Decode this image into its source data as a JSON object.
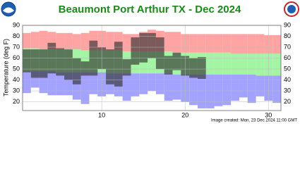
{
  "chart_data": {
    "type": "range_band",
    "title": "Beaumont Port Arthur TX - Dec 2024",
    "y_label": "Temperature (deg F)",
    "footer": "Image created: Mon, 23 Dec 2024 11:00 GMT",
    "x": [
      1,
      2,
      3,
      4,
      5,
      6,
      7,
      8,
      9,
      10,
      11,
      12,
      13,
      14,
      15,
      16,
      17,
      18,
      19,
      20,
      21,
      22,
      23,
      24,
      25,
      26,
      27,
      28,
      29,
      30,
      31
    ],
    "xlim": [
      0.5,
      31.5
    ],
    "xticks": [
      10,
      20,
      30
    ],
    "ylim": [
      12,
      90
    ],
    "yticks": [
      20,
      30,
      40,
      50,
      60,
      70,
      80,
      90
    ],
    "grid": true,
    "record_high": {
      "color": "#ffa3a3",
      "values": [
        83,
        84,
        85,
        84,
        83,
        83,
        82,
        83,
        85,
        85,
        84,
        84,
        82,
        82,
        84,
        86,
        85,
        84,
        84,
        82,
        82,
        82,
        82,
        82,
        82,
        82,
        82,
        82,
        82,
        81,
        81
      ]
    },
    "normal_high": {
      "color": "#a3f5a3",
      "values": [
        69,
        69,
        68,
        68,
        68,
        68,
        68,
        67,
        67,
        67,
        67,
        67,
        66,
        66,
        66,
        66,
        66,
        66,
        65,
        65,
        65,
        65,
        65,
        65,
        65,
        64,
        64,
        64,
        64,
        64,
        64
      ]
    },
    "normal_low": {
      "color": "#a3a3ff",
      "values": [
        48,
        48,
        48,
        48,
        47,
        47,
        47,
        47,
        47,
        47,
        46,
        46,
        46,
        46,
        46,
        46,
        46,
        46,
        45,
        45,
        45,
        45,
        45,
        45,
        45,
        45,
        45,
        45,
        44,
        44,
        44
      ]
    },
    "record_low": {
      "values": [
        28,
        33,
        28,
        26,
        26,
        26,
        22,
        18,
        27,
        25,
        27,
        25,
        21,
        25,
        27,
        30,
        27,
        21,
        22,
        20,
        17,
        14,
        14,
        16,
        17,
        21,
        24,
        19,
        25,
        21,
        19
      ]
    },
    "observed_high": {
      "color": "#333333",
      "values": [
        68,
        68,
        68,
        74,
        69,
        68,
        60,
        57,
        76,
        70,
        68,
        75,
        59,
        79,
        83,
        83,
        79,
        62,
        65,
        62,
        60,
        61,
        null,
        null,
        null,
        null,
        null,
        null,
        null,
        null,
        null
      ]
    },
    "observed_low": {
      "values": [
        47,
        42,
        42,
        46,
        44,
        40,
        36,
        44,
        44,
        50,
        36,
        34,
        44,
        54,
        56,
        60,
        50,
        45,
        49,
        44,
        42,
        41,
        null,
        null,
        null,
        null,
        null,
        null,
        null,
        null,
        null
      ]
    }
  }
}
